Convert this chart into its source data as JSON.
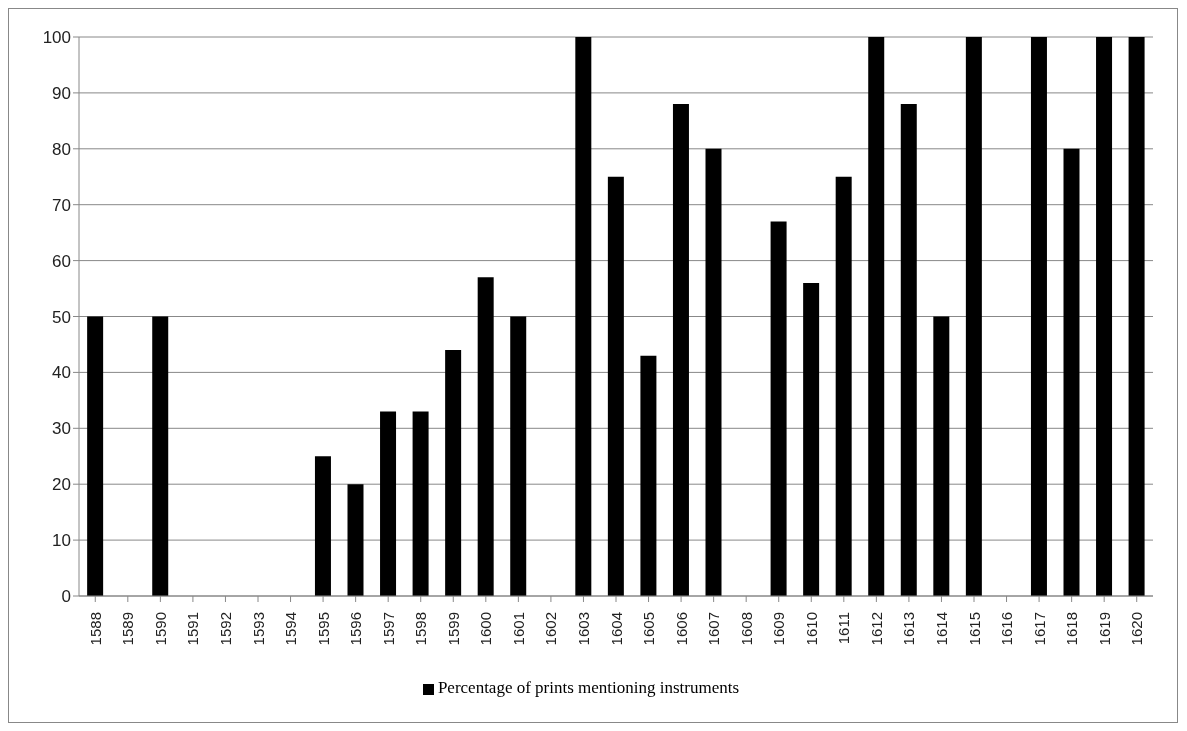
{
  "chart_data": {
    "type": "bar",
    "categories": [
      "1588",
      "1589",
      "1590",
      "1591",
      "1592",
      "1593",
      "1594",
      "1595",
      "1596",
      "1597",
      "1598",
      "1599",
      "1600",
      "1601",
      "1602",
      "1603",
      "1604",
      "1605",
      "1606",
      "1607",
      "1608",
      "1609",
      "1610",
      "1611",
      "1612",
      "1613",
      "1614",
      "1615",
      "1616",
      "1617",
      "1618",
      "1619",
      "1620"
    ],
    "series": [
      {
        "name": "Percentage of prints mentioning instruments",
        "color": "#000000",
        "values": [
          50,
          0,
          50,
          0,
          0,
          0,
          0,
          25,
          20,
          33,
          33,
          44,
          57,
          50,
          0,
          100,
          75,
          43,
          88,
          80,
          0,
          67,
          56,
          75,
          100,
          88,
          50,
          100,
          0,
          100,
          80,
          100,
          100
        ]
      }
    ],
    "ylim": [
      0,
      100
    ],
    "yticks": [
      0,
      10,
      20,
      30,
      40,
      50,
      60,
      70,
      80,
      90,
      100
    ],
    "grid": "y",
    "legend": "bottom"
  }
}
